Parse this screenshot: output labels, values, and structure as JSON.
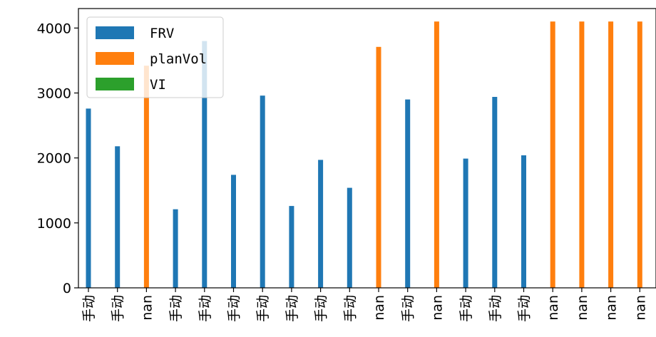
{
  "chart_data": {
    "type": "bar",
    "title": "",
    "xlabel": "",
    "ylabel": "",
    "categories": [
      "手动",
      "手动",
      "nan",
      "手动",
      "手动",
      "手动",
      "手动",
      "手动",
      "手动",
      "手动",
      "nan",
      "手动",
      "nan",
      "手动",
      "手动",
      "手动",
      "nan",
      "nan",
      "nan",
      "nan"
    ],
    "series": [
      {
        "name": "FRV",
        "color": "#1f77b4",
        "values": [
          2760,
          2180,
          null,
          1210,
          3800,
          1740,
          2960,
          1260,
          1970,
          1540,
          null,
          2900,
          null,
          1990,
          2940,
          2040,
          null,
          null,
          null,
          null
        ]
      },
      {
        "name": "planVol",
        "color": "#ff7f0e",
        "values": [
          null,
          null,
          3420,
          null,
          null,
          null,
          null,
          null,
          null,
          null,
          3710,
          null,
          4100,
          null,
          null,
          null,
          4100,
          4100,
          4100,
          4100
        ]
      },
      {
        "name": "VI",
        "color": "#2ca02c",
        "values": [
          null,
          null,
          null,
          null,
          null,
          null,
          null,
          null,
          null,
          null,
          null,
          null,
          null,
          null,
          null,
          null,
          null,
          null,
          null,
          null
        ]
      }
    ],
    "yticks": [
      0,
      1000,
      2000,
      3000,
      4000
    ],
    "ylim": [
      0,
      4300
    ],
    "legend": {
      "placement": "top-left"
    },
    "grid": false
  }
}
